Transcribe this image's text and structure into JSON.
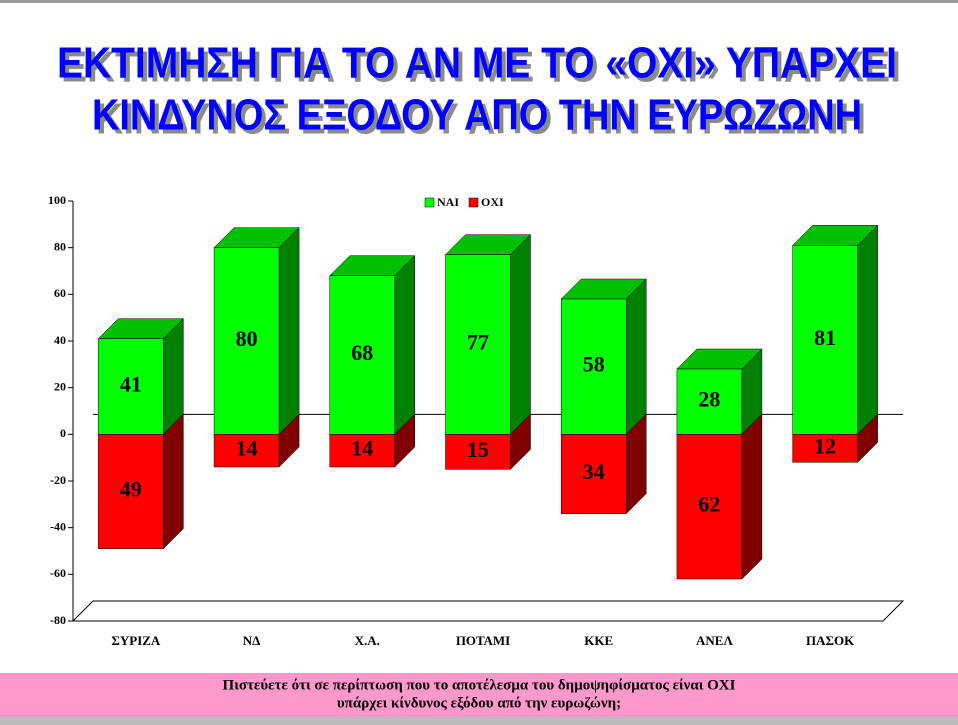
{
  "chart_data": {
    "type": "bar",
    "title": [
      "ΕΚΤΙΜΗΣΗ ΓΙΑ ΤΟ ΑΝ ΜΕ ΤΟ «ΟΧΙ» ΥΠΑΡΧΕΙ",
      "ΚΙΝΔΥΝΟΣ ΕΞΟΔΟΥ ΑΠΟ ΤΗΝ ΕΥΡΩΖΩΝΗ"
    ],
    "categories": [
      "ΣΥΡΙΖΑ",
      "ΝΔ",
      "Χ.Α.",
      "ΠΟΤΑΜΙ",
      "ΚΚΕ",
      "ΑΝΕΛ",
      "ΠΑΣΟΚ"
    ],
    "series": [
      {
        "name": "ΝΑΙ",
        "color": "#00ff00",
        "values": [
          41,
          80,
          68,
          77,
          58,
          28,
          81
        ]
      },
      {
        "name": "ΟΧΙ",
        "color": "#ff0000",
        "values": [
          -49,
          -14,
          -14,
          -15,
          -34,
          -62,
          -12
        ],
        "value_labels": [
          "49",
          "14",
          "14",
          "15",
          "34",
          "62",
          "12"
        ]
      }
    ],
    "ylim": [
      -80,
      100
    ],
    "yticks": [
      -80,
      -60,
      -40,
      -20,
      0,
      20,
      40,
      60,
      80,
      100
    ],
    "legend": "top",
    "footnote": [
      "Πιστεύετε ότι σε περίπτωση που το αποτέλεσμα του δημοψηφίσματος είναι ΟΧΙ",
      "υπάρχει κίνδυνος εξόδου από την ευρωζώνη;"
    ]
  }
}
